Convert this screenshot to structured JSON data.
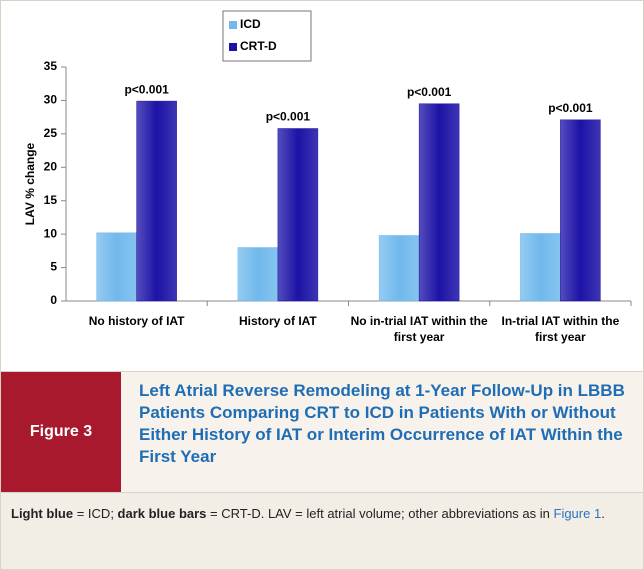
{
  "chart_data": {
    "type": "bar",
    "y_label": "LAV % change",
    "categories": [
      "No history of IAT",
      "History of IAT",
      "No in-trial IAT within the first year",
      "In-trial IAT within the first year"
    ],
    "series": [
      {
        "name": "ICD",
        "color": "#71b9ec",
        "values": [
          10.2,
          8.0,
          9.8,
          10.1
        ]
      },
      {
        "name": "CRT-D",
        "color": "#1c12a6",
        "values": [
          29.9,
          25.8,
          29.5,
          27.1
        ]
      }
    ],
    "annotations": [
      "p<0.001",
      "p<0.001",
      "p<0.001",
      "p<0.001"
    ],
    "ylim": [
      0,
      35
    ],
    "yticks": [
      0,
      5,
      10,
      15,
      20,
      25,
      30,
      35
    ],
    "grid": false
  },
  "figure": {
    "label": "Figure 3",
    "title": "Left Atrial Reverse Remodeling at 1-Year Follow-Up in LBBB Patients Comparing CRT to ICD in Patients With or Without Either History of IAT or Interim Occurrence of IAT Within the First Year",
    "caption": [
      {
        "text": "Light blue",
        "style": "bold"
      },
      {
        "text": " = ICD; ",
        "style": "normal"
      },
      {
        "text": "dark blue bars",
        "style": "bold"
      },
      {
        "text": " = CRT-D. LAV = left atrial volume; other abbreviations as in ",
        "style": "normal"
      },
      {
        "text": "Figure 1",
        "style": "link"
      },
      {
        "text": ".",
        "style": "normal"
      }
    ]
  }
}
